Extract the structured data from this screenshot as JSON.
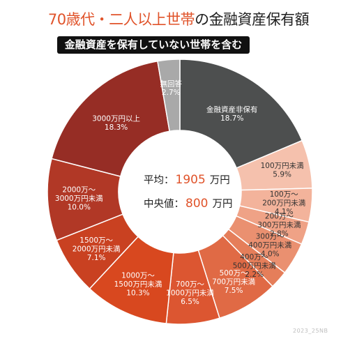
{
  "title_accent": "70歳代・二人以上世帯",
  "title_rest": "の金融資産保有額",
  "subtitle": "金融資産を保有していない世帯を含む",
  "center": {
    "avg_label": "平均：",
    "avg_value": "1905",
    "avg_unit": "万円",
    "median_label": "中央値：",
    "median_value": "800",
    "median_unit": "万円"
  },
  "credit": "2023_25NB",
  "chart_data": {
    "type": "pie",
    "donut": true,
    "title": "70歳代・二人以上世帯の金融資産保有額",
    "subtitle": "金融資産を保有していない世帯を含む",
    "slices": [
      {
        "label": [
          "金融資産非保有"
        ],
        "pct_text": "18.7%",
        "value": 18.7,
        "color": "#4d4f4f"
      },
      {
        "label": [
          "100万円未満"
        ],
        "pct_text": "5.9%",
        "value": 5.9,
        "color": "#f5c1ad",
        "text_color": "#333333"
      },
      {
        "label": [
          "100万～",
          "200万円未満"
        ],
        "pct_text": "4.1%",
        "value": 4.1,
        "color": "#f3b39b",
        "text_color": "#333333"
      },
      {
        "label": [
          "200万～",
          "300万円未満"
        ],
        "pct_text": "2.8%",
        "value": 2.8,
        "color": "#efa286",
        "text_color": "#333333"
      },
      {
        "label": [
          "300万～",
          "400万円未満"
        ],
        "pct_text": "4.0%",
        "value": 4.0,
        "color": "#ea9070",
        "text_color": "#333333"
      },
      {
        "label": [
          "400万～",
          "500万円未満"
        ],
        "pct_text": "2.2%",
        "value": 2.2,
        "color": "#e57e5a",
        "text_color": "#333333"
      },
      {
        "label": [
          "500万～",
          "700万円未満"
        ],
        "pct_text": "7.5%",
        "value": 7.5,
        "color": "#e06a45",
        "text_color": "#ffffff"
      },
      {
        "label": [
          "700万～",
          "1000万円未満"
        ],
        "pct_text": "6.5%",
        "value": 6.5,
        "color": "#dc5631",
        "text_color": "#ffffff"
      },
      {
        "label": [
          "1000万～",
          "1500万円未満"
        ],
        "pct_text": "10.3%",
        "value": 10.3,
        "color": "#d8481f",
        "text_color": "#ffffff"
      },
      {
        "label": [
          "1500万～",
          "2000万円未満"
        ],
        "pct_text": "7.1%",
        "value": 7.1,
        "color": "#c94121",
        "text_color": "#ffffff"
      },
      {
        "label": [
          "2000万～",
          "3000万円未満"
        ],
        "pct_text": "10.0%",
        "value": 10.0,
        "color": "#b13826",
        "text_color": "#ffffff"
      },
      {
        "label": [
          "3000万円以上"
        ],
        "pct_text": "18.3%",
        "value": 18.3,
        "color": "#962d25",
        "text_color": "#ffffff"
      },
      {
        "label": [
          "無回答"
        ],
        "pct_text": "2.7%",
        "value": 2.7,
        "color": "#a9a9a9",
        "text_color": "#ffffff"
      }
    ]
  }
}
